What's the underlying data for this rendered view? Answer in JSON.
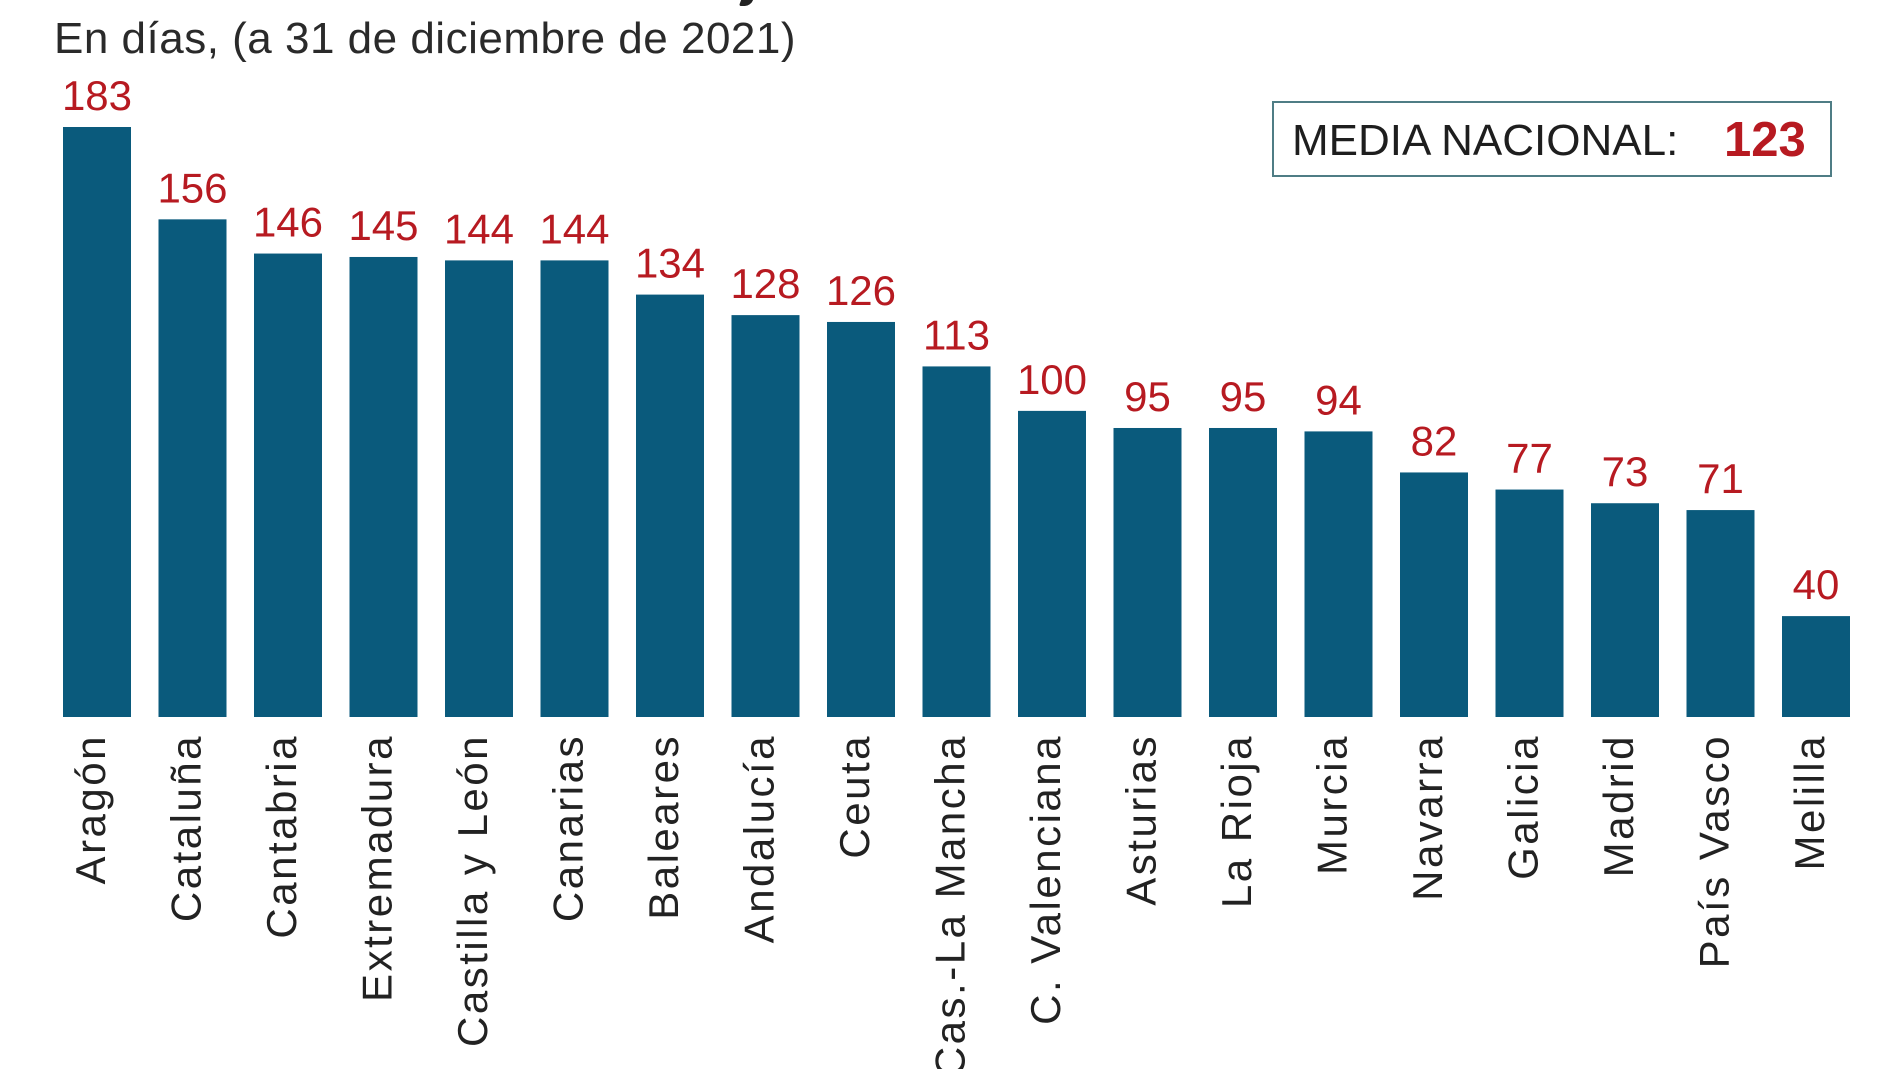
{
  "chart_data": {
    "type": "bar",
    "title": "",
    "subtitle": "En días, (a 31 de diciembre de 2021)",
    "xlabel": "",
    "ylabel": "",
    "grid": false,
    "legend": "none",
    "categories": [
      "Aragón",
      "Cataluña",
      "Cantabria",
      "Extremadura",
      "Castilla y León",
      "Canarias",
      "Baleares",
      "Andalucía",
      "Ceuta",
      "Cas.-La Mancha",
      "C. Valenciana",
      "Asturias",
      "La Rioja",
      "Murcia",
      "Navarra",
      "Galicia",
      "Madrid",
      "País Vasco",
      "Melilla"
    ],
    "values": [
      183,
      156,
      146,
      145,
      144,
      144,
      134,
      128,
      126,
      113,
      100,
      95,
      95,
      94,
      82,
      77,
      73,
      71,
      40
    ],
    "ylim": [
      10.5,
      183
    ],
    "annotation": {
      "label": "MEDIA NACIONAL:",
      "value": "123"
    },
    "colors": {
      "bar": "#0a5a7c",
      "value_label": "#b71a21",
      "text": "#222222",
      "annotation_border": "#4f7d85"
    }
  }
}
